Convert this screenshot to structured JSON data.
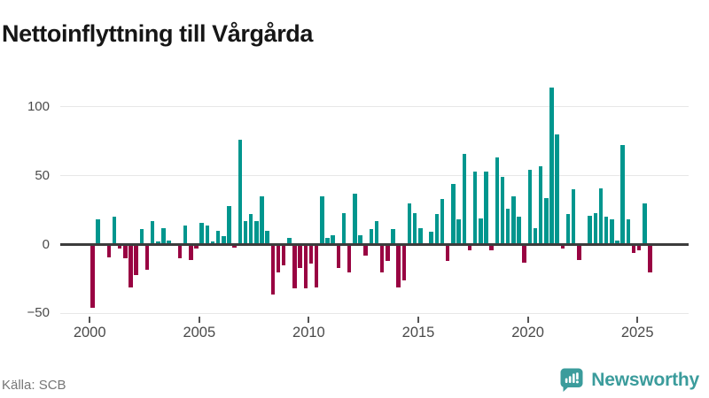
{
  "title": "Nettoinflyttning till Vårgårda",
  "source_label": "Källa: SCB",
  "brand": {
    "name": "Newsworthy",
    "icon": "bar-chart-speech-bubble-icon",
    "color": "#3b9c9c"
  },
  "colors": {
    "positive": "#00968e",
    "negative": "#990342",
    "grid": "#e7e7e7",
    "zero_line": "#3c3c3c",
    "axis_text": "#4a4a4a",
    "title_text": "#161616",
    "source_text": "#767676",
    "background": "#ffffff"
  },
  "chart_data": {
    "type": "bar",
    "title": "Nettoinflyttning till Vårgårda",
    "xlabel": "",
    "ylabel": "",
    "x_unit": "quarter",
    "start_quarter": "2000-Q1",
    "end_quarter": "2025-Q3",
    "grid": "horizontal",
    "legend": "none",
    "ylim": [
      -55,
      120
    ],
    "yticks": [
      {
        "label": "100",
        "value": 100
      },
      {
        "label": "50",
        "value": 50
      },
      {
        "label": "0",
        "value": 0
      },
      {
        "label": "−50",
        "value": -50
      }
    ],
    "xtick_labels": [
      "2000",
      "2005",
      "2010",
      "2015",
      "2020",
      "2025"
    ],
    "positive_color": "#00968e",
    "negative_color": "#990342",
    "series": [
      {
        "year": 2000,
        "values": [
          -46,
          18,
          0,
          -9
        ]
      },
      {
        "year": 2001,
        "values": [
          20,
          -3,
          -10,
          -31
        ]
      },
      {
        "year": 2002,
        "values": [
          -22,
          11,
          -18,
          17
        ]
      },
      {
        "year": 2003,
        "values": [
          2,
          12,
          3,
          0
        ]
      },
      {
        "year": 2004,
        "values": [
          -10,
          14,
          -11,
          -3
        ]
      },
      {
        "year": 2005,
        "values": [
          16,
          14,
          2,
          10
        ]
      },
      {
        "year": 2006,
        "values": [
          6,
          28,
          -2,
          76
        ]
      },
      {
        "year": 2007,
        "values": [
          17,
          22,
          17,
          35
        ]
      },
      {
        "year": 2008,
        "values": [
          10,
          -36,
          -20,
          -15
        ]
      },
      {
        "year": 2009,
        "values": [
          5,
          -32,
          -17,
          -32
        ]
      },
      {
        "year": 2010,
        "values": [
          -14,
          -31,
          35,
          5
        ]
      },
      {
        "year": 2011,
        "values": [
          7,
          -17,
          23,
          -20
        ]
      },
      {
        "year": 2012,
        "values": [
          37,
          7,
          -8,
          11
        ]
      },
      {
        "year": 2013,
        "values": [
          17,
          -20,
          -12,
          11
        ]
      },
      {
        "year": 2014,
        "values": [
          -31,
          -26,
          30,
          23
        ]
      },
      {
        "year": 2015,
        "values": [
          12,
          0,
          9,
          22
        ]
      },
      {
        "year": 2016,
        "values": [
          33,
          -12,
          44,
          18
        ]
      },
      {
        "year": 2017,
        "values": [
          66,
          -4,
          53,
          19
        ]
      },
      {
        "year": 2018,
        "values": [
          53,
          -4,
          63,
          49
        ]
      },
      {
        "year": 2019,
        "values": [
          26,
          35,
          20,
          -13
        ]
      },
      {
        "year": 2020,
        "values": [
          54,
          12,
          57,
          34
        ]
      },
      {
        "year": 2021,
        "values": [
          114,
          80,
          -3,
          22
        ]
      },
      {
        "year": 2022,
        "values": [
          40,
          -11,
          0,
          21
        ]
      },
      {
        "year": 2023,
        "values": [
          23,
          41,
          20,
          18
        ]
      },
      {
        "year": 2024,
        "values": [
          3,
          72,
          18,
          -6
        ]
      },
      {
        "year": 2025,
        "values": [
          -4,
          30,
          -20
        ]
      }
    ]
  }
}
